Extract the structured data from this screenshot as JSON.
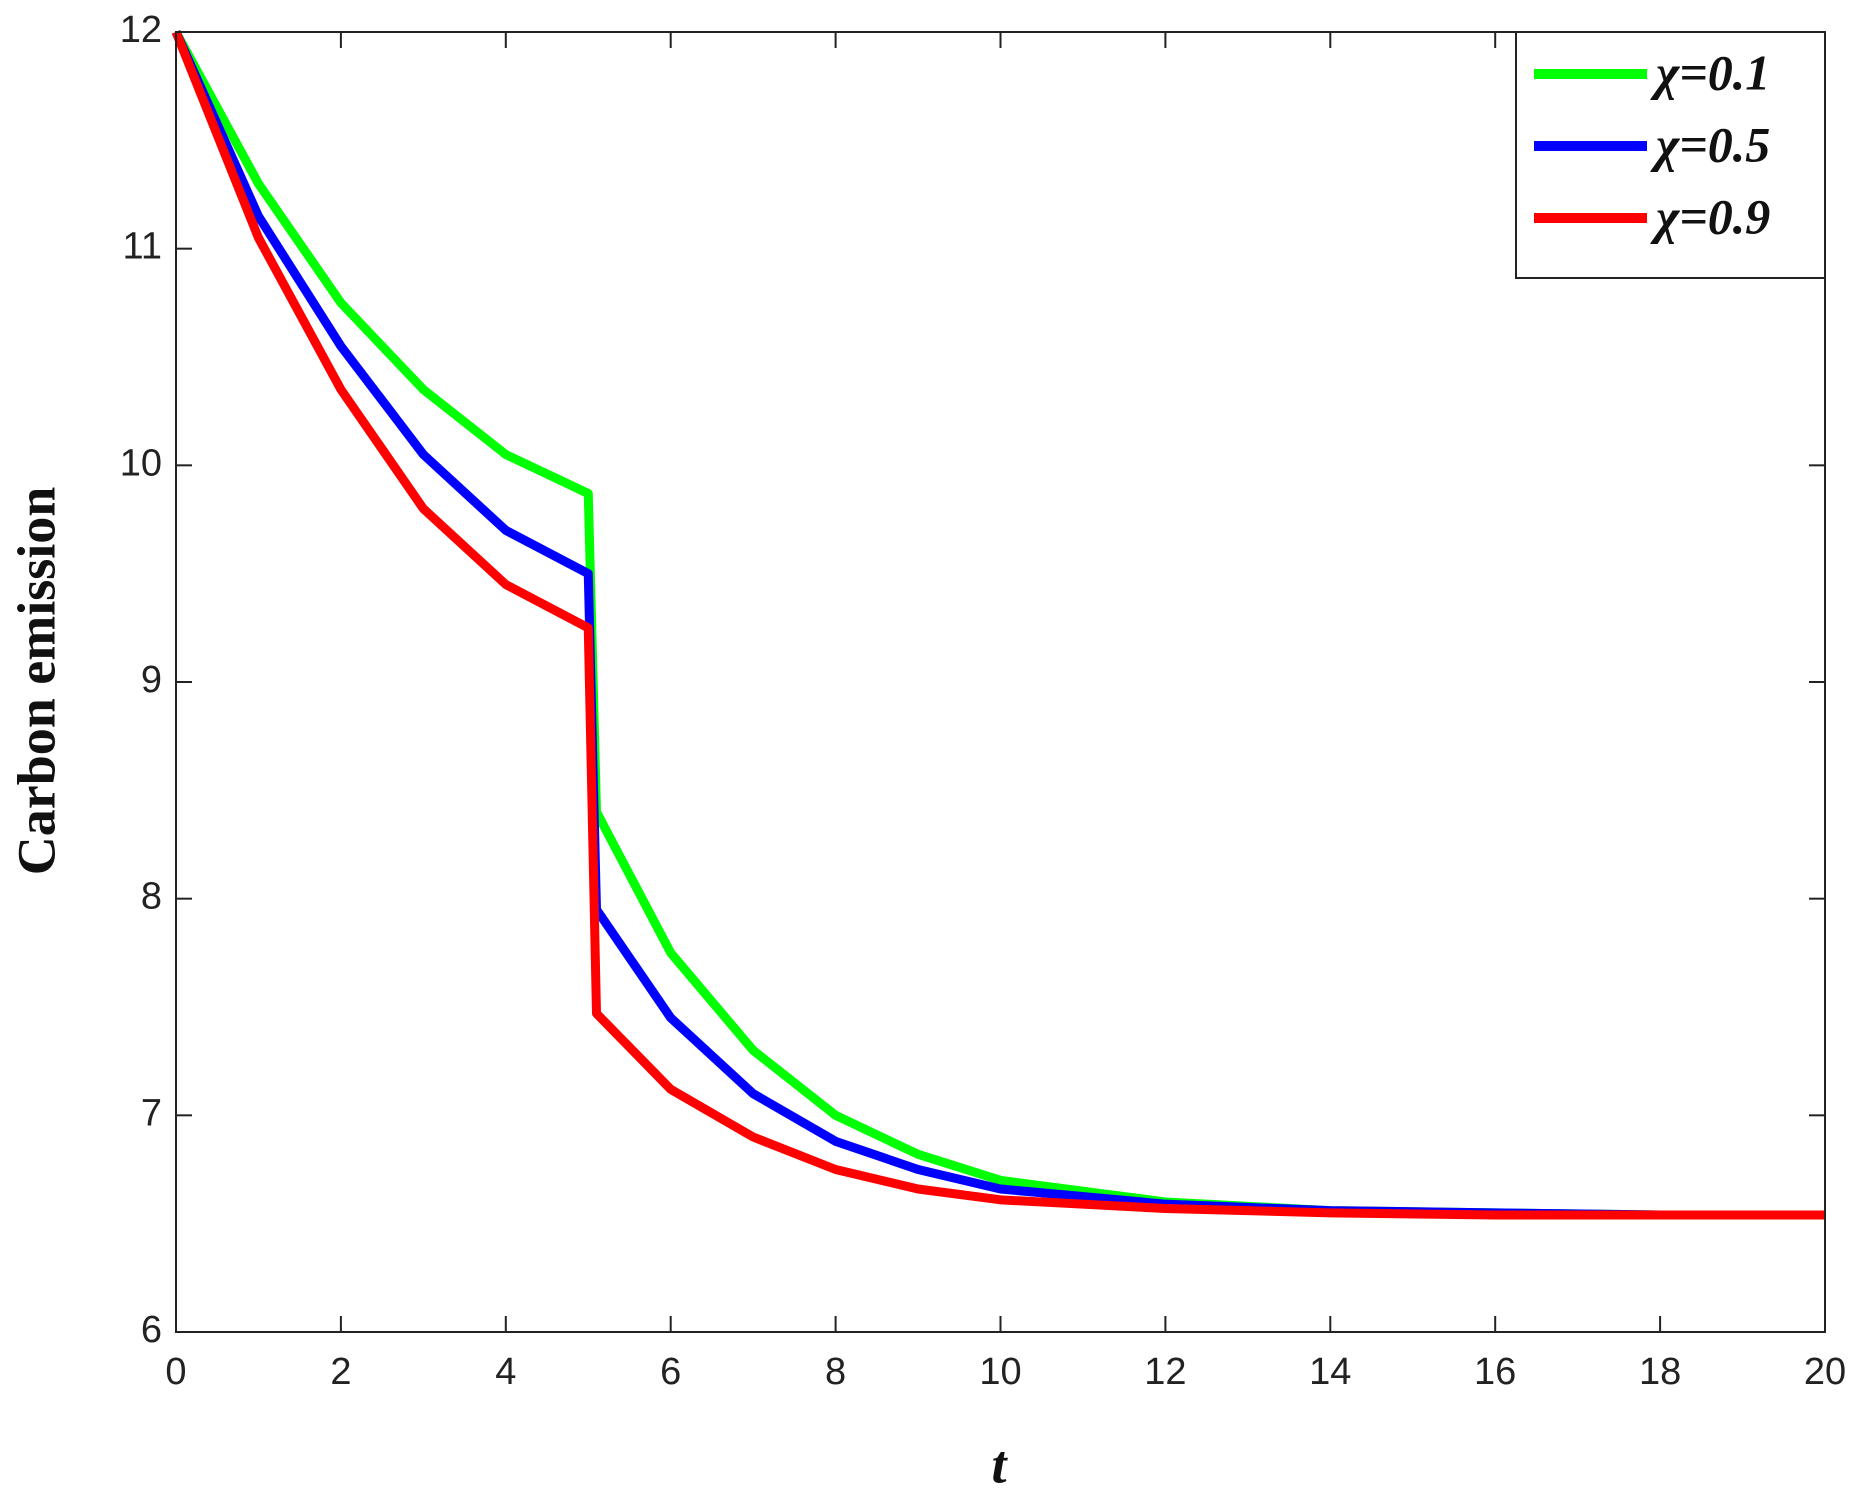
{
  "chart_data": {
    "type": "line",
    "xlabel": "t",
    "ylabel": "Carbon emission",
    "x": [
      0,
      1,
      2,
      3,
      4,
      5,
      5.1,
      6,
      7,
      8,
      9,
      10,
      12,
      14,
      16,
      18,
      20
    ],
    "series": [
      {
        "name": "χ=0.1",
        "color": "#00ff00",
        "values": [
          12,
          11.3,
          10.75,
          10.35,
          10.05,
          9.87,
          8.4,
          7.75,
          7.3,
          7.0,
          6.82,
          6.7,
          6.6,
          6.56,
          6.55,
          6.54,
          6.54
        ]
      },
      {
        "name": "χ=0.5",
        "color": "#0000ff",
        "values": [
          12,
          11.15,
          10.55,
          10.05,
          9.7,
          9.5,
          7.95,
          7.45,
          7.1,
          6.88,
          6.75,
          6.66,
          6.59,
          6.56,
          6.55,
          6.54,
          6.54
        ]
      },
      {
        "name": "χ=0.9",
        "color": "#ff0000",
        "values": [
          12,
          11.05,
          10.35,
          9.8,
          9.45,
          9.25,
          7.47,
          7.12,
          6.9,
          6.75,
          6.66,
          6.61,
          6.57,
          6.55,
          6.54,
          6.54,
          6.54
        ]
      }
    ],
    "xlim": [
      0,
      20
    ],
    "xticks": [
      0,
      2,
      4,
      6,
      8,
      10,
      12,
      14,
      16,
      18,
      20
    ],
    "ylim": [
      6,
      12
    ],
    "yticks": [
      6,
      7,
      8,
      9,
      10,
      11,
      12
    ],
    "legend": "upper right",
    "grid": false
  }
}
